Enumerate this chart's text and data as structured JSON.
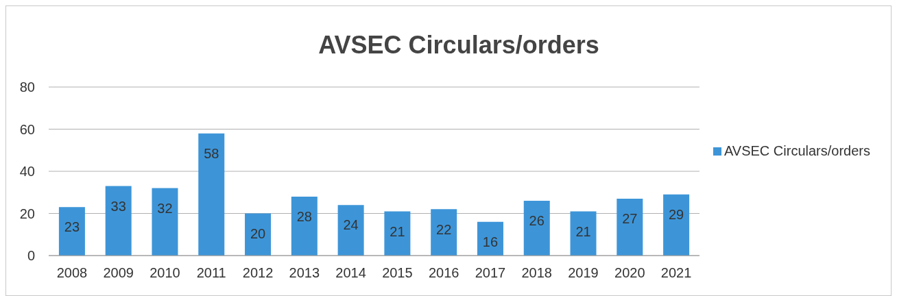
{
  "chart_data": {
    "type": "bar",
    "title": "AVSEC Circulars/orders",
    "categories": [
      "2008",
      "2009",
      "2010",
      "2011",
      "2012",
      "2013",
      "2014",
      "2015",
      "2016",
      "2017",
      "2018",
      "2019",
      "2020",
      "2021"
    ],
    "series": [
      {
        "name": "AVSEC Circulars/orders",
        "color": "#3d95d8",
        "values": [
          23,
          33,
          32,
          58,
          20,
          28,
          24,
          21,
          22,
          16,
          26,
          21,
          27,
          29
        ]
      }
    ],
    "ylim": [
      0,
      80
    ],
    "yticks": [
      0,
      20,
      40,
      60,
      80
    ],
    "grid": "y",
    "legend": "right",
    "data_labels": true
  }
}
